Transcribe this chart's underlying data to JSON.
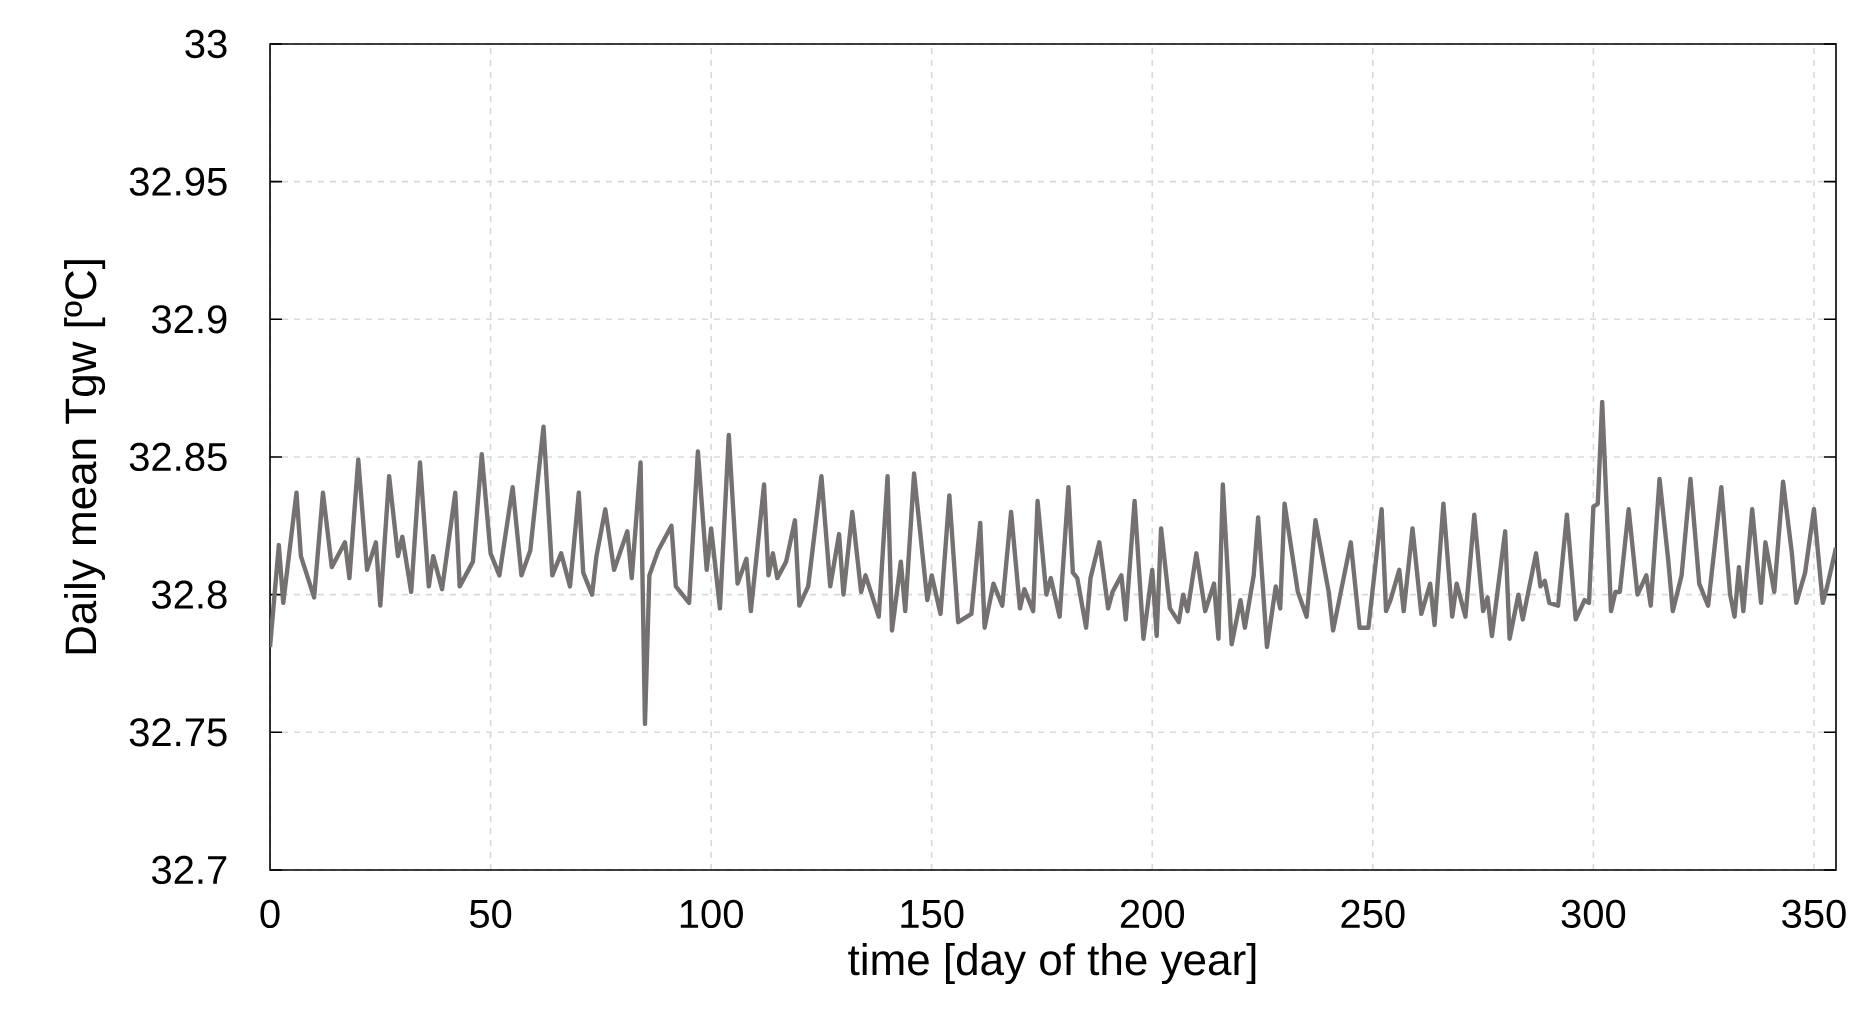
{
  "chart_data": {
    "type": "line",
    "xlabel": "time [day of the year]",
    "ylabel": "Daily mean Tgw [ºC]",
    "x": [
      0,
      2,
      3,
      6,
      7,
      10,
      12,
      14,
      17,
      18,
      20,
      22,
      24,
      25,
      27,
      29,
      30,
      32,
      34,
      36,
      37,
      39,
      42,
      43,
      46,
      48,
      50,
      52,
      55,
      57,
      59,
      62,
      64,
      66,
      68,
      70,
      71,
      73,
      74,
      76,
      78,
      81,
      82,
      84,
      85,
      86,
      88,
      91,
      92,
      95,
      97,
      99,
      100,
      102,
      104,
      106,
      108,
      109,
      112,
      113,
      114,
      115,
      117,
      119,
      120,
      122,
      125,
      127,
      129,
      130,
      132,
      134,
      135,
      138,
      140,
      141,
      143,
      144,
      146,
      149,
      150,
      152,
      154,
      156,
      159,
      161,
      162,
      164,
      166,
      168,
      170,
      171,
      173,
      174,
      176,
      177,
      179,
      181,
      182,
      183,
      185,
      186,
      188,
      190,
      191,
      193,
      194,
      196,
      198,
      200,
      201,
      202,
      204,
      206,
      207,
      208,
      210,
      212,
      214,
      215,
      216,
      218,
      220,
      221,
      223,
      224,
      226,
      228,
      229,
      230,
      233,
      235,
      237,
      240,
      241,
      245,
      247,
      249,
      252,
      253,
      254,
      256,
      257,
      259,
      261,
      263,
      264,
      266,
      268,
      269,
      271,
      273,
      275,
      276,
      277,
      280,
      281,
      283,
      284,
      287,
      288,
      289,
      290,
      292,
      294,
      296,
      298,
      299,
      300,
      301,
      302,
      304,
      305,
      306,
      308,
      310,
      312,
      313,
      315,
      317,
      318,
      320,
      322,
      324,
      326,
      329,
      331,
      332,
      333,
      334,
      336,
      338,
      339,
      341,
      343,
      345,
      346,
      348,
      350,
      352,
      353,
      355
    ],
    "values": [
      32.781,
      32.818,
      32.797,
      32.837,
      32.814,
      32.799,
      32.837,
      32.81,
      32.819,
      32.806,
      32.849,
      32.809,
      32.819,
      32.796,
      32.843,
      32.814,
      32.821,
      32.801,
      32.848,
      32.803,
      32.814,
      32.802,
      32.837,
      32.803,
      32.812,
      32.851,
      32.815,
      32.807,
      32.839,
      32.807,
      32.816,
      32.861,
      32.807,
      32.815,
      32.803,
      32.837,
      32.808,
      32.8,
      32.814,
      32.831,
      32.809,
      32.823,
      32.806,
      32.848,
      32.753,
      32.807,
      32.816,
      32.825,
      32.803,
      32.797,
      32.852,
      32.809,
      32.824,
      32.795,
      32.858,
      32.804,
      32.813,
      32.794,
      32.84,
      32.807,
      32.815,
      32.806,
      32.812,
      32.827,
      32.796,
      32.803,
      32.843,
      32.803,
      32.822,
      32.8,
      32.83,
      32.801,
      32.807,
      32.792,
      32.843,
      32.787,
      32.812,
      32.794,
      32.844,
      32.798,
      32.807,
      32.793,
      32.836,
      32.79,
      32.793,
      32.826,
      32.788,
      32.804,
      32.796,
      32.83,
      32.795,
      32.802,
      32.794,
      32.834,
      32.8,
      32.806,
      32.792,
      32.839,
      32.808,
      32.806,
      32.788,
      32.806,
      32.819,
      32.795,
      32.801,
      32.807,
      32.791,
      32.834,
      32.784,
      32.809,
      32.785,
      32.824,
      32.795,
      32.79,
      32.8,
      32.794,
      32.815,
      32.794,
      32.804,
      32.784,
      32.84,
      32.782,
      32.798,
      32.788,
      32.807,
      32.828,
      32.781,
      32.803,
      32.795,
      32.833,
      32.801,
      32.792,
      32.827,
      32.801,
      32.787,
      32.819,
      32.788,
      32.788,
      32.831,
      32.794,
      32.798,
      32.809,
      32.794,
      32.824,
      32.793,
      32.804,
      32.789,
      32.833,
      32.792,
      32.804,
      32.792,
      32.829,
      32.794,
      32.799,
      32.785,
      32.823,
      32.784,
      32.8,
      32.791,
      32.815,
      32.803,
      32.805,
      32.797,
      32.796,
      32.829,
      32.791,
      32.798,
      32.797,
      32.832,
      32.833,
      32.87,
      32.794,
      32.801,
      32.801,
      32.831,
      32.8,
      32.807,
      32.796,
      32.842,
      32.812,
      32.794,
      32.807,
      32.842,
      32.804,
      32.796,
      32.839,
      32.8,
      32.792,
      32.81,
      32.794,
      32.831,
      32.797,
      32.819,
      32.801,
      32.841,
      32.815,
      32.797,
      32.808,
      32.831,
      32.797,
      32.803,
      32.817
    ],
    "color": "#767171",
    "line_style": "solid",
    "grid": true,
    "xlim": [
      0,
      355
    ],
    "ylim": [
      32.7,
      33
    ],
    "xticks": [
      0,
      50,
      100,
      150,
      200,
      250,
      300,
      350
    ],
    "yticks": [
      32.7,
      32.75,
      32.8,
      32.85,
      32.9,
      32.95,
      33
    ]
  }
}
